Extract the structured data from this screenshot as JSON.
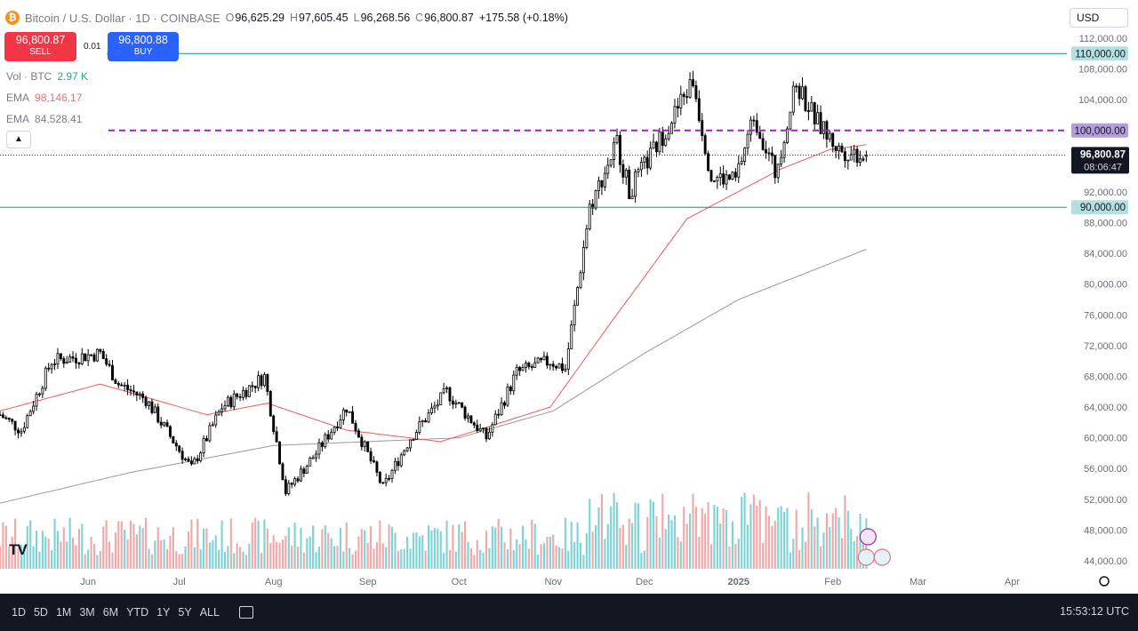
{
  "header": {
    "symbol_text": "Bitcoin / U.S. Dollar · 1D · COINBASE",
    "logo_letter": "₿",
    "ohlc": {
      "o_label": "O",
      "o": "96,625.29",
      "h_label": "H",
      "h": "97,605.45",
      "l_label": "L",
      "l": "96,268.56",
      "c_label": "C",
      "c": "96,800.87",
      "change": "+175.58 (+0.18%)"
    }
  },
  "trade": {
    "sell_price": "96,800.87",
    "sell_label": "SELL",
    "buy_price": "96,800.88",
    "buy_label": "BUY",
    "spread": "0.01"
  },
  "indicators": [
    {
      "name": "Vol · BTC",
      "value": "2.97 K",
      "color": "#26a69a"
    },
    {
      "name": "EMA",
      "value": "98,146.17",
      "color": "#e57373"
    },
    {
      "name": "EMA",
      "value": "84,528.41",
      "color": "#787b86"
    }
  ],
  "collapse_icon": "chevron-up-icon",
  "currency": "USD",
  "tv_logo": "TV",
  "bottom": {
    "ranges": [
      "1D",
      "5D",
      "1M",
      "3M",
      "6M",
      "YTD",
      "1Y",
      "5Y",
      "ALL"
    ],
    "clock": "15:53:12 UTC",
    "snapshot_icon": "date-range-icon"
  },
  "colors": {
    "up": "#000000",
    "down": "#000000",
    "ema50": "#f05a5a",
    "ema200": "#999999",
    "hline": "#089981",
    "resistance": "#9c27b0",
    "vol_up": "#7dd3d6",
    "vol_down": "#f0a8a8"
  },
  "chart_data": {
    "type": "candlestick",
    "title": "Bitcoin / U.S. Dollar · 1D · COINBASE",
    "ylim": [
      43000,
      114000
    ],
    "y_ticks": [
      44000,
      48000,
      52000,
      56000,
      60000,
      64000,
      68000,
      72000,
      76000,
      80000,
      84000,
      88000,
      92000,
      96000,
      100000,
      104000,
      108000,
      112000
    ],
    "y_tick_labels": [
      "44,000.00",
      "48,000.00",
      "52,000.00",
      "56,000.00",
      "60,000.00",
      "64,000.00",
      "68,000.00",
      "72,000.00",
      "76,000.00",
      "80,000.00",
      "84,000.00",
      "88,000.00",
      "92,000.00",
      "96,000.00",
      "100,000.00",
      "104,000.00",
      "108,000.00",
      "112,000.00"
    ],
    "x_labels": [
      {
        "label": "Jun",
        "date": "2024-06-01"
      },
      {
        "label": "Jul",
        "date": "2024-07-01"
      },
      {
        "label": "Aug",
        "date": "2024-08-01"
      },
      {
        "label": "Sep",
        "date": "2024-09-01"
      },
      {
        "label": "Oct",
        "date": "2024-10-01"
      },
      {
        "label": "Nov",
        "date": "2024-11-01"
      },
      {
        "label": "Dec",
        "date": "2024-12-01"
      },
      {
        "label": "2025",
        "date": "2025-01-01"
      },
      {
        "label": "Feb",
        "date": "2025-02-01"
      },
      {
        "label": "Mar",
        "date": "2025-03-01"
      },
      {
        "label": "Apr",
        "date": "2025-04-01"
      }
    ],
    "x_start": "2024-05-03",
    "x_end": "2025-04-19",
    "last_date": "2025-02-12",
    "close_anchors": [
      {
        "date": "2024-05-03",
        "close": 63000
      },
      {
        "date": "2024-05-10",
        "close": 61000
      },
      {
        "date": "2024-05-20",
        "close": 70000
      },
      {
        "date": "2024-06-05",
        "close": 71000
      },
      {
        "date": "2024-06-11",
        "close": 67000
      },
      {
        "date": "2024-06-20",
        "close": 65000
      },
      {
        "date": "2024-07-05",
        "close": 56000
      },
      {
        "date": "2024-07-15",
        "close": 64000
      },
      {
        "date": "2024-07-29",
        "close": 68000
      },
      {
        "date": "2024-08-05",
        "close": 53000
      },
      {
        "date": "2024-08-15",
        "close": 58000
      },
      {
        "date": "2024-08-25",
        "close": 64000
      },
      {
        "date": "2024-09-06",
        "close": 53500
      },
      {
        "date": "2024-09-15",
        "close": 60000
      },
      {
        "date": "2024-09-27",
        "close": 66000
      },
      {
        "date": "2024-10-10",
        "close": 60000
      },
      {
        "date": "2024-10-20",
        "close": 68500
      },
      {
        "date": "2024-10-31",
        "close": 70000
      },
      {
        "date": "2024-11-05",
        "close": 69000
      },
      {
        "date": "2024-11-13",
        "close": 90000
      },
      {
        "date": "2024-11-22",
        "close": 98500
      },
      {
        "date": "2024-11-26",
        "close": 92000
      },
      {
        "date": "2024-12-05",
        "close": 98000
      },
      {
        "date": "2024-12-17",
        "close": 106500
      },
      {
        "date": "2024-12-23",
        "close": 94000
      },
      {
        "date": "2024-12-31",
        "close": 93500
      },
      {
        "date": "2025-01-06",
        "close": 102000
      },
      {
        "date": "2025-01-13",
        "close": 94500
      },
      {
        "date": "2025-01-20",
        "close": 106000
      },
      {
        "date": "2025-01-27",
        "close": 101000
      },
      {
        "date": "2025-02-03",
        "close": 97500
      },
      {
        "date": "2025-02-12",
        "close": 96800
      }
    ],
    "ema_50_anchors": [
      {
        "date": "2024-05-03",
        "close": 63500
      },
      {
        "date": "2024-06-05",
        "close": 67000
      },
      {
        "date": "2024-07-10",
        "close": 63000
      },
      {
        "date": "2024-07-30",
        "close": 64500
      },
      {
        "date": "2024-08-25",
        "close": 61000
      },
      {
        "date": "2024-09-25",
        "close": 59500
      },
      {
        "date": "2024-10-31",
        "close": 64000
      },
      {
        "date": "2024-11-20",
        "close": 75000
      },
      {
        "date": "2024-12-15",
        "close": 88500
      },
      {
        "date": "2025-01-15",
        "close": 95000
      },
      {
        "date": "2025-01-31",
        "close": 97500
      },
      {
        "date": "2025-02-12",
        "close": 98146
      }
    ],
    "ema_200_anchors": [
      {
        "date": "2024-05-03",
        "close": 51500
      },
      {
        "date": "2024-06-15",
        "close": 55500
      },
      {
        "date": "2024-08-01",
        "close": 59000
      },
      {
        "date": "2024-10-01",
        "close": 60000
      },
      {
        "date": "2024-11-01",
        "close": 63500
      },
      {
        "date": "2024-12-01",
        "close": 71000
      },
      {
        "date": "2025-01-01",
        "close": 78000
      },
      {
        "date": "2025-02-12",
        "close": 84528
      }
    ],
    "horizontal_lines": [
      {
        "value": 110000,
        "label": "110,000.00",
        "style": "solid",
        "color": "#089981"
      },
      {
        "value": 100000,
        "label": "100,000.00",
        "style": "dashed",
        "color": "#9c27b0"
      },
      {
        "value": 90000,
        "label": "90,000.00",
        "style": "solid",
        "color": "#089981"
      }
    ],
    "last_price_label": "96,800.87",
    "countdown": "08:06:47",
    "volume_max_k": 6.5,
    "volume_axis": "bottom"
  }
}
